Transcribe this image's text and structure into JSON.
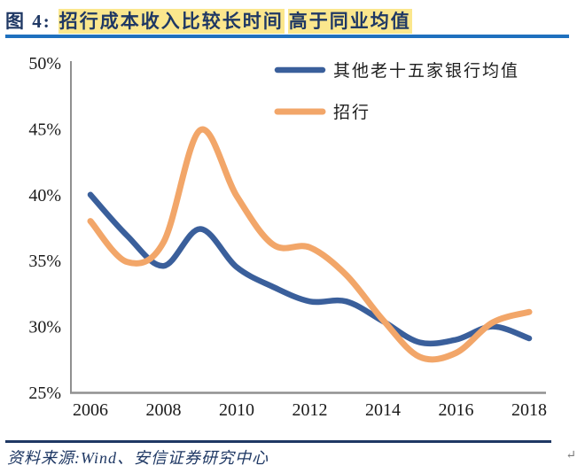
{
  "header": {
    "figure_label": "图 4:",
    "title_part1": "招行成本收入比较长时间",
    "title_part2": "高于同业均值"
  },
  "footer": {
    "source": "资料来源:Wind、安信证券研究中心",
    "return_mark": "↵"
  },
  "colors": {
    "navy": "#1F3864",
    "title_underline": "#1E70BE",
    "highlight": "#FBE78D",
    "axis_gray": "#909090",
    "peers_blue": "#3A5F9B",
    "cmb_orange": "#F2A669"
  },
  "chart_data": {
    "type": "line",
    "x": [
      2006,
      2007,
      2008,
      2009,
      2010,
      2011,
      2012,
      2013,
      2014,
      2015,
      2016,
      2017,
      2018
    ],
    "xtick_labels": [
      "2006",
      "2008",
      "2010",
      "2012",
      "2014",
      "2016",
      "2018"
    ],
    "xtick_years": [
      2006,
      2008,
      2010,
      2012,
      2014,
      2016,
      2018
    ],
    "ytick_labels": [
      "25%",
      "30%",
      "35%",
      "40%",
      "45%",
      "50%"
    ],
    "ytick_values": [
      25,
      30,
      35,
      40,
      45,
      50
    ],
    "ylim": [
      25,
      50
    ],
    "xlim": [
      2006,
      2018
    ],
    "grid": false,
    "smooth": true,
    "legend_position": "top-right-inside",
    "series": [
      {
        "name": "其他老十五家银行均值",
        "color": "#3A5F9B",
        "stroke_width": 6.5,
        "values": [
          40.0,
          36.9,
          34.6,
          37.4,
          34.5,
          33.0,
          31.9,
          31.9,
          30.4,
          28.8,
          29.0,
          30.0,
          29.1
        ]
      },
      {
        "name": "招行",
        "color": "#F2A669",
        "stroke_width": 7,
        "values": [
          38.0,
          34.9,
          36.4,
          44.9,
          39.9,
          36.2,
          36.0,
          33.9,
          30.5,
          27.7,
          28.0,
          30.3,
          31.1
        ]
      }
    ]
  }
}
